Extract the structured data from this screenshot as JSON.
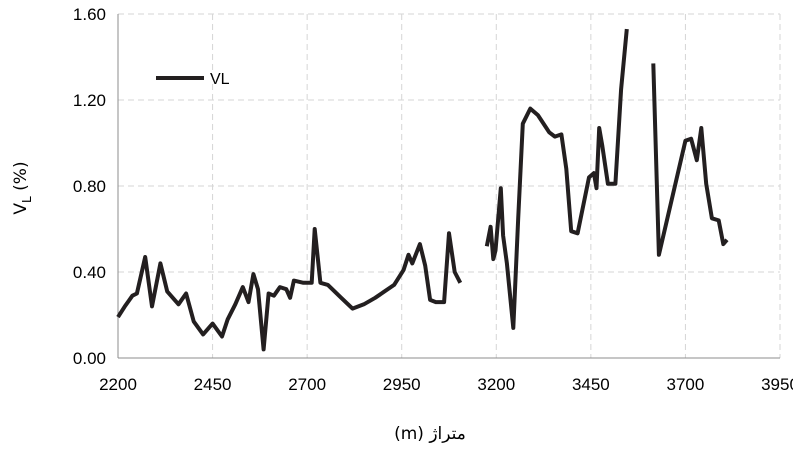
{
  "chart_data": {
    "type": "line",
    "xlabel": "متراژ (m)",
    "ylabel_main": "V",
    "ylabel_sub": "L",
    "ylabel_suffix": " (%)",
    "xlim": [
      2200,
      3950
    ],
    "ylim": [
      0,
      1.6
    ],
    "x_ticks": [
      2200,
      2450,
      2700,
      2950,
      3200,
      3450,
      3700,
      3950
    ],
    "y_ticks": [
      0,
      0.4,
      0.8,
      1.2,
      1.6
    ],
    "y_tick_labels": [
      "0.00",
      "0.40",
      "0.80",
      "1.20",
      "1.60"
    ],
    "grid": true,
    "legend": "top-left",
    "line_color": "#231f20",
    "series": [
      {
        "name": "VL",
        "segments": [
          [
            [
              2200,
              0.19
            ],
            [
              2218,
              0.24
            ],
            [
              2238,
              0.29
            ],
            [
              2250,
              0.3
            ],
            [
              2272,
              0.47
            ],
            [
              2290,
              0.24
            ],
            [
              2312,
              0.44
            ],
            [
              2330,
              0.31
            ],
            [
              2360,
              0.25
            ],
            [
              2380,
              0.3
            ],
            [
              2400,
              0.17
            ],
            [
              2425,
              0.11
            ],
            [
              2450,
              0.16
            ],
            [
              2475,
              0.1
            ],
            [
              2490,
              0.18
            ],
            [
              2510,
              0.25
            ],
            [
              2530,
              0.33
            ],
            [
              2545,
              0.26
            ],
            [
              2558,
              0.39
            ],
            [
              2570,
              0.32
            ],
            [
              2585,
              0.04
            ],
            [
              2598,
              0.3
            ],
            [
              2612,
              0.29
            ],
            [
              2628,
              0.33
            ],
            [
              2645,
              0.32
            ],
            [
              2655,
              0.28
            ],
            [
              2665,
              0.36
            ],
            [
              2690,
              0.35
            ],
            [
              2712,
              0.35
            ],
            [
              2720,
              0.6
            ],
            [
              2735,
              0.35
            ],
            [
              2755,
              0.34
            ],
            [
              2790,
              0.28
            ],
            [
              2820,
              0.23
            ],
            [
              2850,
              0.25
            ],
            [
              2880,
              0.28
            ],
            [
              2930,
              0.34
            ],
            [
              2955,
              0.41
            ],
            [
              2968,
              0.48
            ],
            [
              2978,
              0.44
            ],
            [
              2998,
              0.53
            ],
            [
              3012,
              0.43
            ],
            [
              3025,
              0.27
            ],
            [
              3040,
              0.26
            ],
            [
              3062,
              0.26
            ],
            [
              3075,
              0.58
            ],
            [
              3090,
              0.4
            ],
            [
              3105,
              0.35
            ]
          ],
          [
            [
              3175,
              0.52
            ],
            [
              3185,
              0.61
            ],
            [
              3192,
              0.46
            ],
            [
              3198,
              0.5
            ],
            [
              3212,
              0.79
            ],
            [
              3218,
              0.57
            ],
            [
              3228,
              0.44
            ],
            [
              3245,
              0.14
            ],
            [
              3258,
              0.65
            ],
            [
              3270,
              1.09
            ],
            [
              3290,
              1.16
            ],
            [
              3310,
              1.13
            ],
            [
              3340,
              1.05
            ],
            [
              3355,
              1.03
            ],
            [
              3372,
              1.04
            ],
            [
              3385,
              0.88
            ],
            [
              3398,
              0.59
            ],
            [
              3415,
              0.58
            ],
            [
              3445,
              0.84
            ],
            [
              3458,
              0.86
            ],
            [
              3465,
              0.79
            ],
            [
              3472,
              1.07
            ],
            [
              3480,
              0.99
            ],
            [
              3495,
              0.81
            ],
            [
              3515,
              0.81
            ],
            [
              3530,
              1.25
            ],
            [
              3545,
              1.53
            ]
          ],
          [
            [
              3615,
              1.37
            ],
            [
              3630,
              0.48
            ],
            [
              3700,
              1.01
            ],
            [
              3715,
              1.02
            ],
            [
              3730,
              0.92
            ],
            [
              3742,
              1.07
            ],
            [
              3755,
              0.81
            ],
            [
              3770,
              0.65
            ],
            [
              3788,
              0.64
            ],
            [
              3800,
              0.53
            ],
            [
              3810,
              0.55
            ]
          ]
        ]
      }
    ]
  }
}
